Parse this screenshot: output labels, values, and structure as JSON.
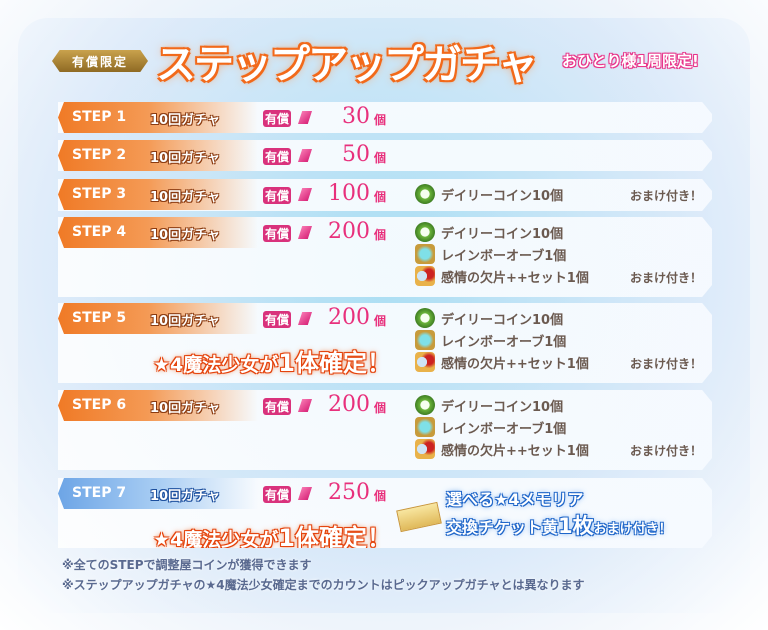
{
  "header": {
    "badge": "有償限定",
    "title": "ステップアップガチャ",
    "limit": "おひとり様1周限定!"
  },
  "common": {
    "gacha": "10回ガチャ",
    "paid": "有償",
    "unit": "個",
    "omake": "おまけ付き！",
    "confirm_pre": "★4魔法少女が",
    "confirm_big": "1体確定！"
  },
  "steps": [
    {
      "label": "STEP 1",
      "cost": "30",
      "color": "orange",
      "bonuses": [],
      "confirm": false
    },
    {
      "label": "STEP 2",
      "cost": "50",
      "color": "orange",
      "bonuses": [],
      "confirm": false
    },
    {
      "label": "STEP 3",
      "cost": "100",
      "color": "orange",
      "bonuses": [
        {
          "icon": "daily-coin-icon",
          "text": "デイリーコイン10個"
        }
      ],
      "confirm": false
    },
    {
      "label": "STEP 4",
      "cost": "200",
      "color": "orange",
      "bonuses": [
        {
          "icon": "daily-coin-icon",
          "text": "デイリーコイン10個"
        },
        {
          "icon": "rainbow-orb-icon",
          "text": "レインボーオーブ1個"
        },
        {
          "icon": "emotion-shard-icon",
          "text": "感情の欠片++セット1個"
        }
      ],
      "confirm": false
    },
    {
      "label": "STEP 5",
      "cost": "200",
      "color": "orange",
      "bonuses": [
        {
          "icon": "daily-coin-icon",
          "text": "デイリーコイン10個"
        },
        {
          "icon": "rainbow-orb-icon",
          "text": "レインボーオーブ1個"
        },
        {
          "icon": "emotion-shard-icon",
          "text": "感情の欠片++セット1個"
        }
      ],
      "confirm": true
    },
    {
      "label": "STEP 6",
      "cost": "200",
      "color": "orange",
      "bonuses": [
        {
          "icon": "daily-coin-icon",
          "text": "デイリーコイン10個"
        },
        {
          "icon": "rainbow-orb-icon",
          "text": "レインボーオーブ1個"
        },
        {
          "icon": "emotion-shard-icon",
          "text": "感情の欠片++セット1個"
        }
      ],
      "confirm": false
    },
    {
      "label": "STEP 7",
      "cost": "250",
      "color": "blue",
      "bonuses": [],
      "confirm": true
    }
  ],
  "step7_bonus": {
    "line1": "選べる★4メモリア",
    "line2a": "交換チケット黄",
    "line2b": "1枚",
    "line2c": "おまけ付き！"
  },
  "notes": [
    "※全てのSTEPで調整屋コインが獲得できます",
    "※ステップアップガチャの★4魔法少女確定までのカウントはピックアップガチャとは異なります"
  ],
  "colors": {
    "orange": "#f07a26",
    "blue": "#6da5e6",
    "pink": "#e8307c"
  }
}
